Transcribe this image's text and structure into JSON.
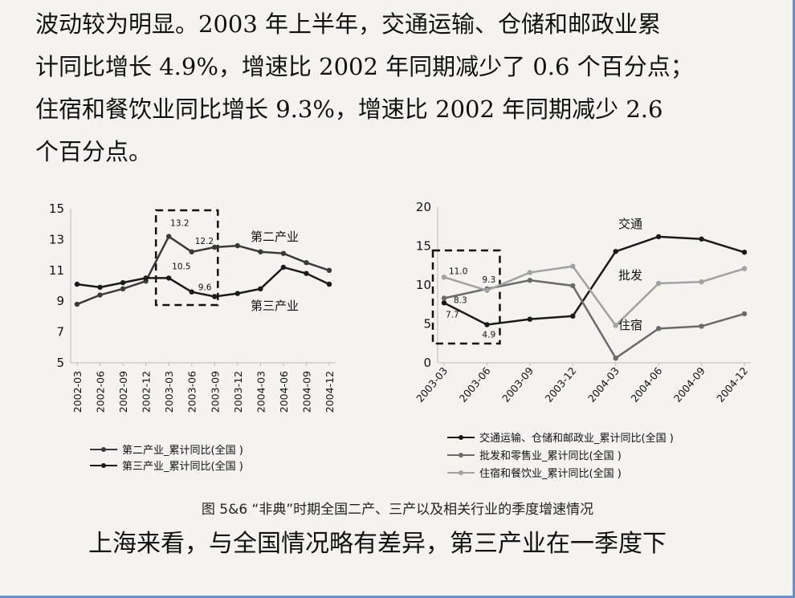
{
  "paragraph": {
    "lines": [
      "波动较为明显。2003 年上半年，交通运输、仓储和邮政业累",
      "计同比增长 4.9%，增速比 2002 年同期减少了 0.6 个百分点；",
      "住宿和餐饮业同比增长 9.3%，增速比 2002 年同期减少 2.6",
      "个百分点。"
    ]
  },
  "chart_data": [
    {
      "type": "line",
      "title": "",
      "xlabel": "",
      "ylabel": "",
      "ylim": [
        5,
        15
      ],
      "yticks": [
        "5",
        "7",
        "9",
        "11",
        "13",
        "15"
      ],
      "categories": [
        "2002-03",
        "2002-06",
        "2002-09",
        "2002-12",
        "2003-03",
        "2003-06",
        "2003-09",
        "2003-12",
        "2004-03",
        "2004-06",
        "2004-09",
        "2004-12"
      ],
      "grid": false,
      "highlight_box": {
        "from": "2003-03",
        "to": "2003-09"
      },
      "series": [
        {
          "name": "第二产业_累计同比(全国)",
          "inline_label": "第二产业",
          "color": "#3a3a3a",
          "values": [
            8.8,
            9.4,
            9.8,
            10.3,
            13.2,
            12.2,
            12.5,
            12.6,
            12.2,
            12.1,
            11.5,
            11.0
          ],
          "data_labels": [
            null,
            null,
            null,
            null,
            "13.2",
            "12.2",
            null,
            null,
            null,
            null,
            null,
            null
          ]
        },
        {
          "name": "第三产业_累计同比(全国)",
          "inline_label": "第三产业",
          "color": "#1a1a1a",
          "values": [
            10.1,
            9.9,
            10.2,
            10.5,
            10.5,
            9.6,
            9.3,
            9.5,
            9.8,
            11.2,
            10.8,
            10.1
          ],
          "data_labels": [
            null,
            null,
            null,
            null,
            "10.5",
            "9.6",
            null,
            null,
            null,
            null,
            null,
            null
          ]
        }
      ],
      "legend": [
        "第二产业_累计同比(全国 )",
        "第三产业_累计同比(全国 )"
      ]
    },
    {
      "type": "line",
      "title": "",
      "xlabel": "",
      "ylabel": "",
      "ylim": [
        0,
        20
      ],
      "yticks": [
        "0",
        "5",
        "10",
        "15",
        "20"
      ],
      "categories": [
        "2003-03",
        "2003-06",
        "2003-09",
        "2003-12",
        "2004-03",
        "2004-06",
        "2004-09",
        "2004-12"
      ],
      "grid": false,
      "highlight_box": {
        "from": "2003-03",
        "to": "2003-06"
      },
      "series": [
        {
          "name": "交通运输、仓储和邮政业_累计同比(全国)",
          "inline_label": "交通",
          "color": "#1a1a1a",
          "values": [
            7.7,
            4.9,
            5.6,
            6.0,
            14.3,
            16.2,
            15.9,
            14.2
          ],
          "data_labels": [
            "7.7",
            "4.9",
            null,
            null,
            null,
            null,
            null,
            null
          ]
        },
        {
          "name": "批发和零售业_累计同比(全国)",
          "inline_label": "批发",
          "color": "#6b6b6b",
          "values": [
            8.3,
            9.5,
            10.6,
            9.9,
            0.6,
            4.4,
            4.7,
            6.3
          ],
          "data_labels": [
            "8.3",
            null,
            null,
            null,
            null,
            null,
            null,
            null
          ]
        },
        {
          "name": "住宿和餐饮业_累计同比(全国)",
          "inline_label": "住宿",
          "color": "#a2a2a2",
          "values": [
            11.0,
            9.3,
            11.6,
            12.4,
            4.8,
            10.2,
            10.4,
            12.1
          ],
          "data_labels": [
            "11.0",
            "9.3",
            null,
            null,
            null,
            null,
            null,
            null
          ]
        }
      ],
      "legend": [
        "交通运输、仓储和邮政业_累计同比(全国 )",
        "批发和零售业_累计同比(全国 )",
        "住宿和餐饮业_累计同比(全国 )"
      ]
    }
  ],
  "caption": "图 5&6 “非典”时期全国二产、三产以及相关行业的季度增速情况",
  "next_paragraph": "上海来看，与全国情况略有差异，第三产业在一季度下"
}
